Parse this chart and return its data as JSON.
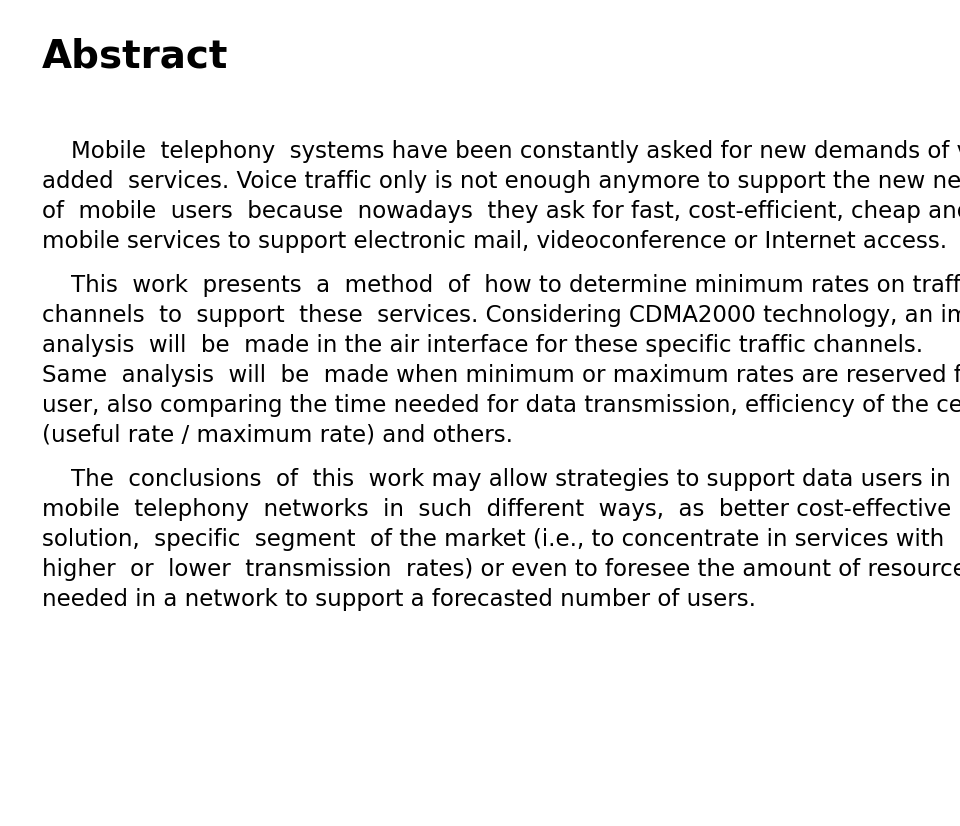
{
  "background_color": "#ffffff",
  "title": "Abstract",
  "title_fontsize": 28,
  "title_bold": true,
  "body_fontsize": 16.5,
  "text_color": "#000000",
  "paragraphs": [
    "Mobile telephony systems have been constantly asked for new demands of value added services. Voice traffic only is not enough anymore to support the new needs of mobile users because nowadays they ask for fast, cost-efficient, cheap and mobile services to support electronic mail, videoconference or Internet access.",
    "This work presents a method of how to determine minimum rates on traffic channels to support these services. Considering CDMA2000 technology, an impact analysis will be made in the air interface for these specific traffic channels. Same analysis will be made when minimum or maximum rates are reserved for each user, also comparing the time needed for data transmission, efficiency of the cell (useful rate / maximum rate) and others.",
    "The conclusions of this work may allow strategies to support data users in mobile telephony networks in such different ways, as better cost-effective solution, specific segment of the market (i.e., to concentrate in services with higher or lower transmission rates) or even to foresee the amount of resources needed in a network to support a forecasted number of users."
  ]
}
